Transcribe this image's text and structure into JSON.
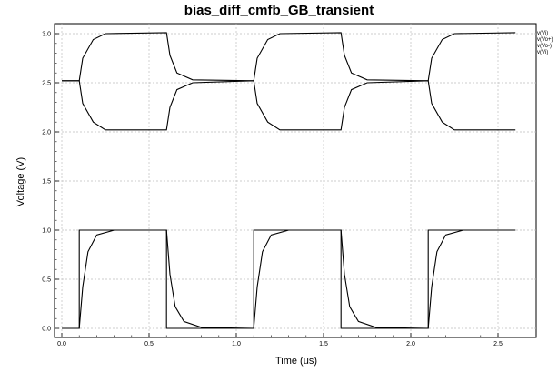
{
  "chart_data": {
    "type": "line",
    "title": "bias_diff_cmfb_GB_transient",
    "xlabel": "Time (us)",
    "ylabel": "Voltage (V)",
    "xlim": [
      0.0,
      2.6
    ],
    "ylim": [
      -0.05,
      3.1
    ],
    "x_ticks": [
      "0.0",
      "0.5",
      "1.0",
      "1.5",
      "2.0",
      "2.5"
    ],
    "y_ticks": [
      "0.0",
      "0.5",
      "1.0",
      "1.5",
      "2.0",
      "2.5",
      "3.0"
    ],
    "grid": true,
    "legend_position": "top-right",
    "series": [
      {
        "name": "v(Vi)",
        "values": [
          [
            0.0,
            0.0
          ],
          [
            0.1,
            0.0
          ],
          [
            0.1,
            1.0
          ],
          [
            0.6,
            1.0
          ],
          [
            0.6,
            0.0
          ],
          [
            1.1,
            0.0
          ],
          [
            1.1,
            1.0
          ],
          [
            1.6,
            1.0
          ],
          [
            1.6,
            0.0
          ],
          [
            2.1,
            0.0
          ],
          [
            2.1,
            1.0
          ],
          [
            2.6,
            1.0
          ]
        ]
      },
      {
        "name": "v(Vo+)",
        "values": [
          [
            0.0,
            2.52
          ],
          [
            0.1,
            2.52
          ],
          [
            0.12,
            2.75
          ],
          [
            0.18,
            2.94
          ],
          [
            0.25,
            3.0
          ],
          [
            0.6,
            3.01
          ],
          [
            0.62,
            2.78
          ],
          [
            0.66,
            2.6
          ],
          [
            0.75,
            2.53
          ],
          [
            1.1,
            2.52
          ],
          [
            1.12,
            2.75
          ],
          [
            1.18,
            2.94
          ],
          [
            1.25,
            3.0
          ],
          [
            1.6,
            3.01
          ],
          [
            1.62,
            2.78
          ],
          [
            1.66,
            2.6
          ],
          [
            1.75,
            2.53
          ],
          [
            2.1,
            2.52
          ],
          [
            2.12,
            2.75
          ],
          [
            2.18,
            2.94
          ],
          [
            2.25,
            3.0
          ],
          [
            2.6,
            3.01
          ]
        ]
      },
      {
        "name": "v(Vo-)",
        "values": [
          [
            0.0,
            2.52
          ],
          [
            0.1,
            2.52
          ],
          [
            0.12,
            2.29
          ],
          [
            0.18,
            2.1
          ],
          [
            0.25,
            2.02
          ],
          [
            0.6,
            2.02
          ],
          [
            0.62,
            2.25
          ],
          [
            0.66,
            2.43
          ],
          [
            0.75,
            2.5
          ],
          [
            1.1,
            2.52
          ],
          [
            1.12,
            2.29
          ],
          [
            1.18,
            2.1
          ],
          [
            1.25,
            2.02
          ],
          [
            1.6,
            2.02
          ],
          [
            1.62,
            2.25
          ],
          [
            1.66,
            2.43
          ],
          [
            1.75,
            2.5
          ],
          [
            2.1,
            2.52
          ],
          [
            2.12,
            2.29
          ],
          [
            2.18,
            2.1
          ],
          [
            2.25,
            2.02
          ],
          [
            2.6,
            2.02
          ]
        ]
      },
      {
        "name": "v(Vi)",
        "values": [
          [
            0.0,
            0.0
          ],
          [
            0.1,
            0.0
          ],
          [
            0.12,
            0.42
          ],
          [
            0.15,
            0.78
          ],
          [
            0.2,
            0.95
          ],
          [
            0.3,
            1.0
          ],
          [
            0.6,
            1.0
          ],
          [
            0.62,
            0.55
          ],
          [
            0.65,
            0.22
          ],
          [
            0.7,
            0.07
          ],
          [
            0.8,
            0.01
          ],
          [
            1.1,
            0.0
          ],
          [
            1.12,
            0.42
          ],
          [
            1.15,
            0.78
          ],
          [
            1.2,
            0.95
          ],
          [
            1.3,
            1.0
          ],
          [
            1.6,
            1.0
          ],
          [
            1.62,
            0.55
          ],
          [
            1.65,
            0.22
          ],
          [
            1.7,
            0.07
          ],
          [
            1.8,
            0.01
          ],
          [
            2.1,
            0.0
          ],
          [
            2.12,
            0.42
          ],
          [
            2.15,
            0.78
          ],
          [
            2.2,
            0.95
          ],
          [
            2.3,
            1.0
          ],
          [
            2.6,
            1.0
          ]
        ]
      }
    ],
    "legend_labels": [
      "v(Vi)",
      "v(Vo+)",
      "v(Vo-)",
      "v(Vi)"
    ]
  }
}
